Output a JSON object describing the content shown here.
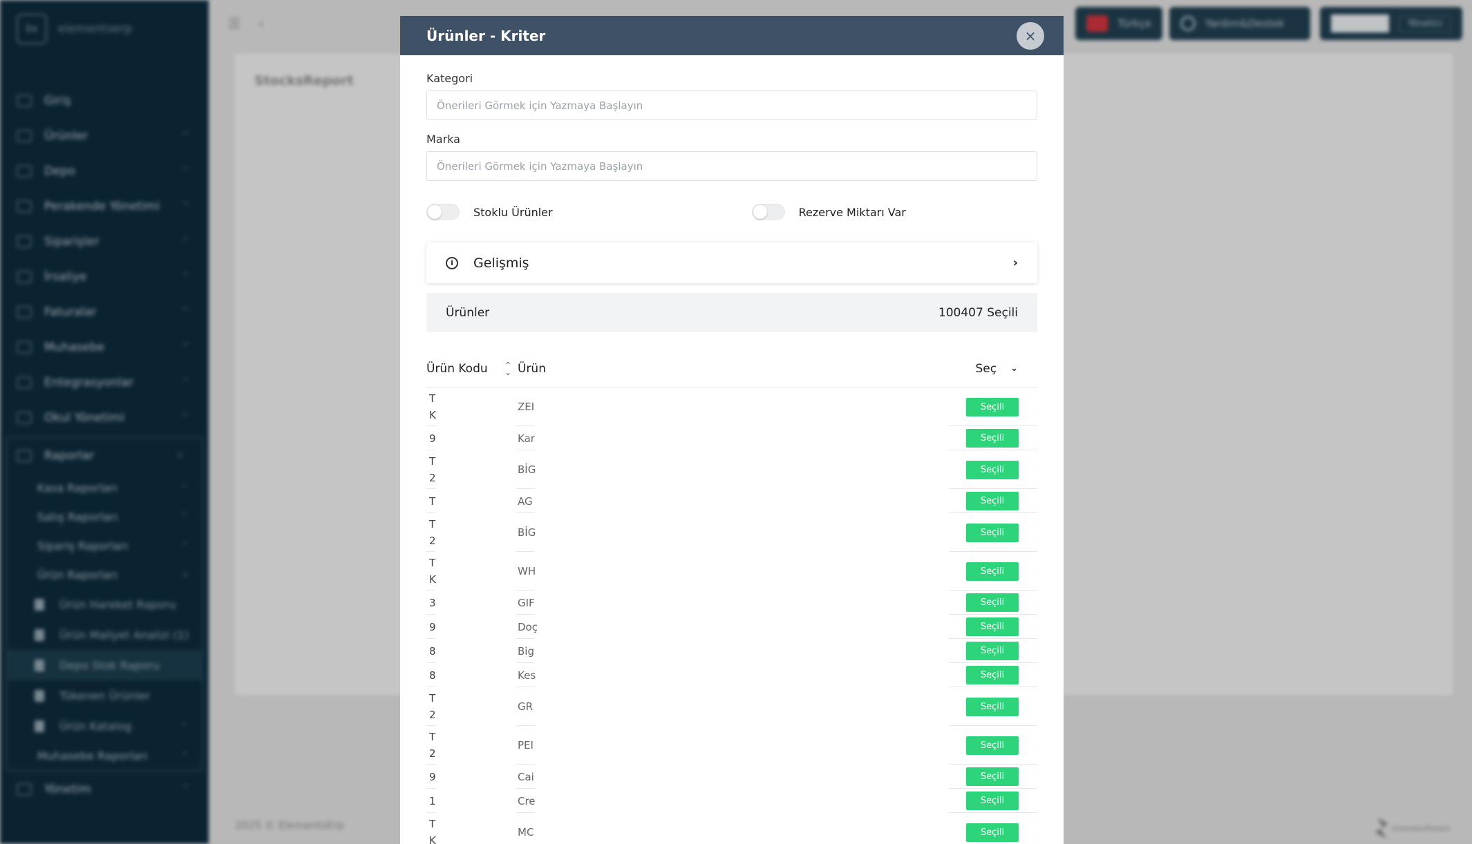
{
  "sidebar": {
    "brand_abbr": "Ee",
    "brand_name": "elementserp",
    "items": [
      {
        "label": "Giriş",
        "chev": ""
      },
      {
        "label": "Ürünler",
        "chev": "^"
      },
      {
        "label": "Depo",
        "chev": "^"
      },
      {
        "label": "Perakende Yönetimi",
        "chev": "^"
      },
      {
        "label": "Siparişler",
        "chev": "^"
      },
      {
        "label": "İrsaliye",
        "chev": "^"
      },
      {
        "label": "Faturalar",
        "chev": "^"
      },
      {
        "label": "Muhasebe",
        "chev": "^"
      },
      {
        "label": "Entegrasyonlar",
        "chev": "^"
      },
      {
        "label": "Okul Yönetimi",
        "chev": "^"
      }
    ],
    "reports": {
      "label": "Raporlar",
      "sub": [
        {
          "label": "Kasa Raporları"
        },
        {
          "label": "Satış Raporları"
        },
        {
          "label": "Sipariş Raporları"
        },
        {
          "label": "Ürün Raporları"
        }
      ],
      "leaves": [
        {
          "label": "Ürün Hareket Raporu"
        },
        {
          "label": "Ürün Maliyet Analizi (1)"
        },
        {
          "label": "Depo Stok Raporu"
        },
        {
          "label": "Tükenen Ürünler"
        },
        {
          "label": "Ürün Katalog"
        }
      ],
      "accounting": "Muhasebe Raporları"
    },
    "management": "Yönetim"
  },
  "topbar": {
    "language": "Türkçe",
    "help": "Yardım&Destek",
    "user_role": "Yönetici"
  },
  "page": {
    "title": "StocksReport",
    "footer": "2025 © ElementsErp",
    "footer_logo": "shamasoftware"
  },
  "modal": {
    "title": "Ürünler - Kriter",
    "close": "×",
    "category_label": "Kategori",
    "category_placeholder": "Önerileri Görmek için Yazmaya Başlayın",
    "brand_label": "Marka",
    "brand_placeholder": "Önerileri Görmek için Yazmaya Başlayın",
    "toggle_stock": "Stoklu Ürünler",
    "toggle_reserve": "Rezerve Miktarı Var",
    "advanced": "Gelişmiş",
    "selected_label": "Ürünler",
    "selected_count": "100407 Seçili",
    "columns": {
      "code": "Ürün Kodu",
      "name": "Ürün",
      "select": "Seç"
    },
    "button_label": "Seçili",
    "rows": [
      {
        "code": "T\nK",
        "name": "ZEI"
      },
      {
        "code": "9",
        "name": "Kar"
      },
      {
        "code": "T\n2",
        "name": "BİG"
      },
      {
        "code": "T",
        "name": "AG"
      },
      {
        "code": "T\n2",
        "name": "BİG"
      },
      {
        "code": "T\nK",
        "name": "WH"
      },
      {
        "code": "3",
        "name": "GIF"
      },
      {
        "code": "9",
        "name": "Doç"
      },
      {
        "code": "8",
        "name": "Big"
      },
      {
        "code": "8",
        "name": "Kes"
      },
      {
        "code": "T\n2",
        "name": "GR"
      },
      {
        "code": "T\n2",
        "name": "PEI"
      },
      {
        "code": "9",
        "name": "Cai"
      },
      {
        "code": "1",
        "name": "Cre"
      },
      {
        "code": "T\nK",
        "name": "MC"
      }
    ]
  }
}
